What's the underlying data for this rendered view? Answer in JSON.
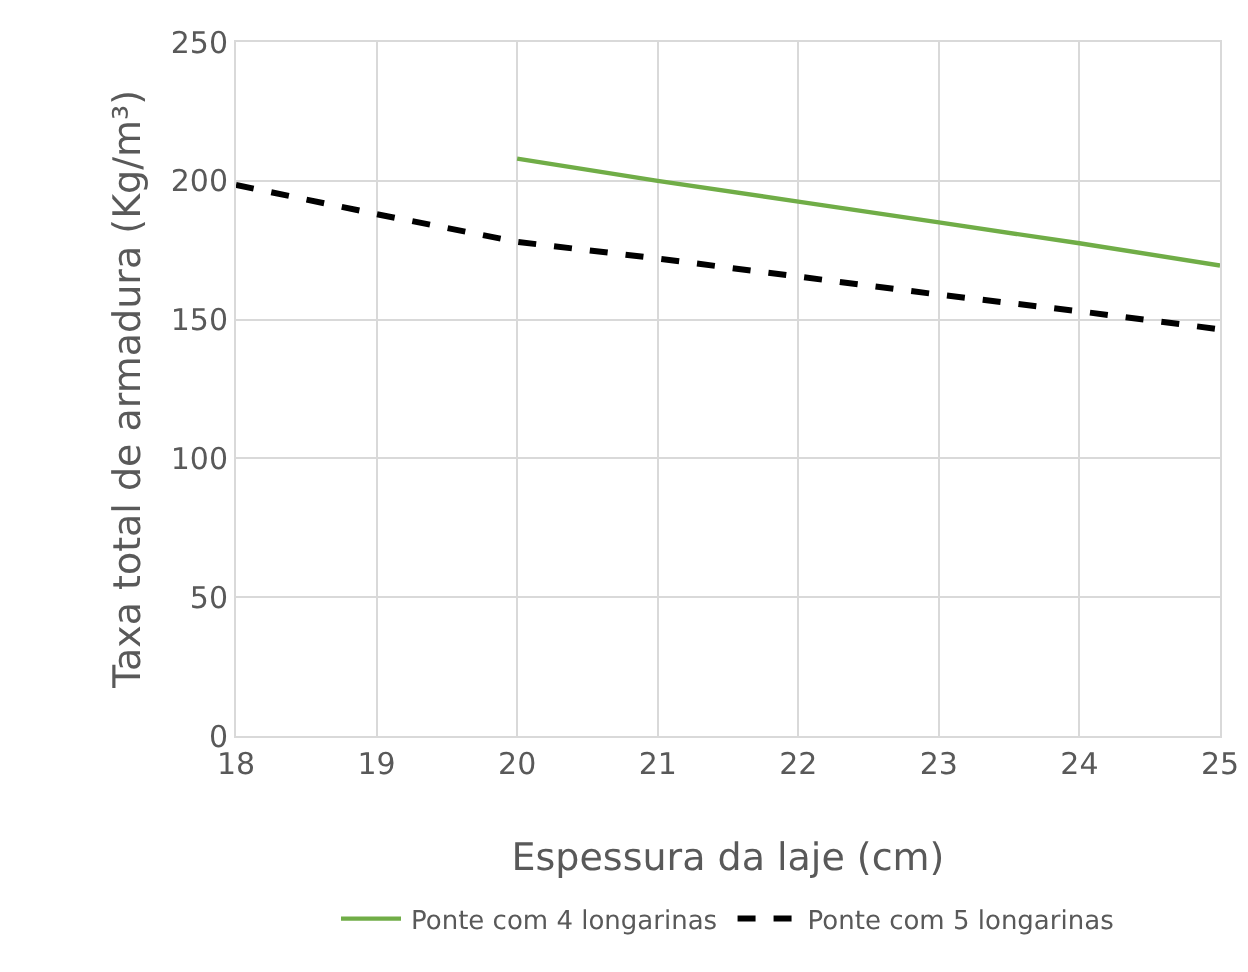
{
  "chart_data": {
    "type": "line",
    "xlabel": "Espessura da laje (cm)",
    "ylabel": "Taxa total de armadura (Kg/m³)",
    "x": [
      18,
      19,
      20,
      21,
      22,
      23,
      24,
      25
    ],
    "series": [
      {
        "name": "Ponte com 4 longarinas",
        "color": "#70ad47",
        "line_style": "solid",
        "values": [
          null,
          null,
          208,
          200,
          192.5,
          185,
          177.5,
          169.5
        ]
      },
      {
        "name": "Ponte com 5 longarinas",
        "color": "#000000",
        "line_style": "dashed",
        "values": [
          198.5,
          188,
          178,
          172,
          165.5,
          159,
          153,
          146.5
        ]
      }
    ],
    "xlim": [
      18,
      25
    ],
    "xticks": [
      18,
      19,
      20,
      21,
      22,
      23,
      24,
      25
    ],
    "ylim": [
      0,
      250
    ],
    "yticks": [
      0,
      50,
      100,
      150,
      200,
      250
    ],
    "grid": true,
    "legend": "bottom",
    "marker": "none"
  }
}
